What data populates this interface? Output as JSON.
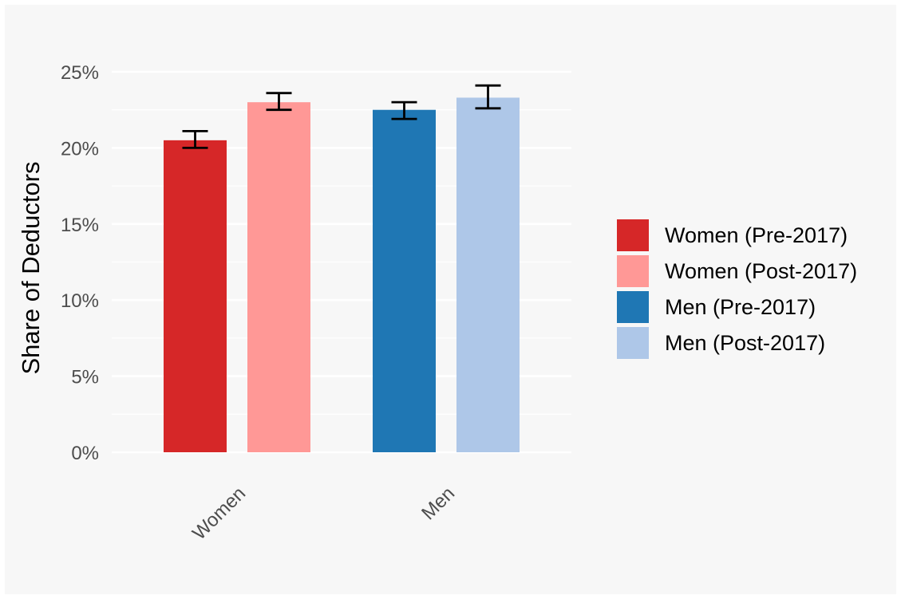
{
  "chart_data": {
    "type": "bar",
    "categories": [
      "Women",
      "Men"
    ],
    "series": [
      {
        "name": "Women (Pre-2017)",
        "category": "Women",
        "value": 20.5,
        "error_low": 20.0,
        "error_high": 21.1,
        "color": "#d62728"
      },
      {
        "name": "Women (Post-2017)",
        "category": "Women",
        "value": 23.0,
        "error_low": 22.5,
        "error_high": 23.6,
        "color": "#ff9896"
      },
      {
        "name": "Men (Pre-2017)",
        "category": "Men",
        "value": 22.5,
        "error_low": 21.9,
        "error_high": 23.0,
        "color": "#1f77b4"
      },
      {
        "name": "Men (Post-2017)",
        "category": "Men",
        "value": 23.3,
        "error_low": 22.6,
        "error_high": 24.1,
        "color": "#aec7e8"
      }
    ],
    "ylabel": "Share of Deductors",
    "xlabel": "",
    "ylim": [
      0,
      25
    ],
    "yticks": [
      "0%",
      "5%",
      "10%",
      "15%",
      "20%",
      "25%"
    ],
    "grid": true,
    "legend_position": "right",
    "background_color": "#f7f7f7"
  }
}
